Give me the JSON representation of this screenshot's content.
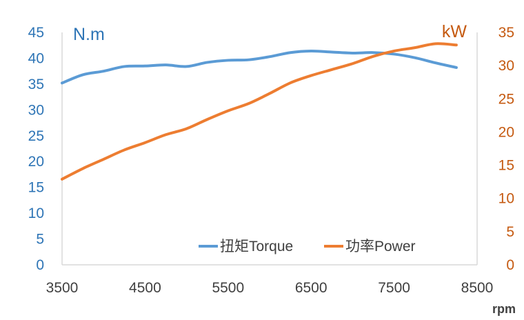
{
  "chart_data": {
    "type": "line",
    "xlabel": "rpm",
    "ylabel_left": "N.m",
    "ylabel_right": "kW",
    "xlim": [
      3500,
      8500
    ],
    "ylim_left": [
      0,
      45
    ],
    "ylim_right": [
      0,
      35
    ],
    "x_ticks": [
      "3500",
      "4500",
      "5500",
      "6500",
      "7500",
      "8500"
    ],
    "y_left_ticks": [
      "0",
      "5",
      "10",
      "15",
      "20",
      "25",
      "30",
      "35",
      "40",
      "45"
    ],
    "y_right_ticks": [
      "0",
      "5",
      "10",
      "15",
      "20",
      "25",
      "30",
      "35"
    ],
    "grid": false,
    "legend_position": "bottom-right",
    "series": [
      {
        "name": "扭矩Torque",
        "axis": "left",
        "color": "#5b9bd5",
        "x": [
          3500,
          3750,
          4000,
          4250,
          4500,
          4750,
          5000,
          5250,
          5500,
          5750,
          6000,
          6250,
          6500,
          6750,
          7000,
          7250,
          7500,
          7750,
          8000,
          8250
        ],
        "y": [
          35.2,
          36.8,
          37.5,
          38.4,
          38.5,
          38.7,
          38.4,
          39.2,
          39.6,
          39.7,
          40.3,
          41.1,
          41.4,
          41.2,
          41.0,
          41.1,
          40.8,
          40.1,
          39.1,
          38.2
        ]
      },
      {
        "name": "功率Power",
        "axis": "right",
        "color": "#ed7d31",
        "x": [
          3500,
          3750,
          4000,
          4250,
          4500,
          4750,
          5000,
          5250,
          5500,
          5750,
          6000,
          6250,
          6500,
          6750,
          7000,
          7250,
          7500,
          7750,
          8000,
          8250
        ],
        "y": [
          12.9,
          14.5,
          15.9,
          17.3,
          18.4,
          19.6,
          20.5,
          21.9,
          23.2,
          24.3,
          25.8,
          27.4,
          28.5,
          29.4,
          30.3,
          31.4,
          32.2,
          32.7,
          33.3,
          33.1
        ]
      }
    ]
  }
}
